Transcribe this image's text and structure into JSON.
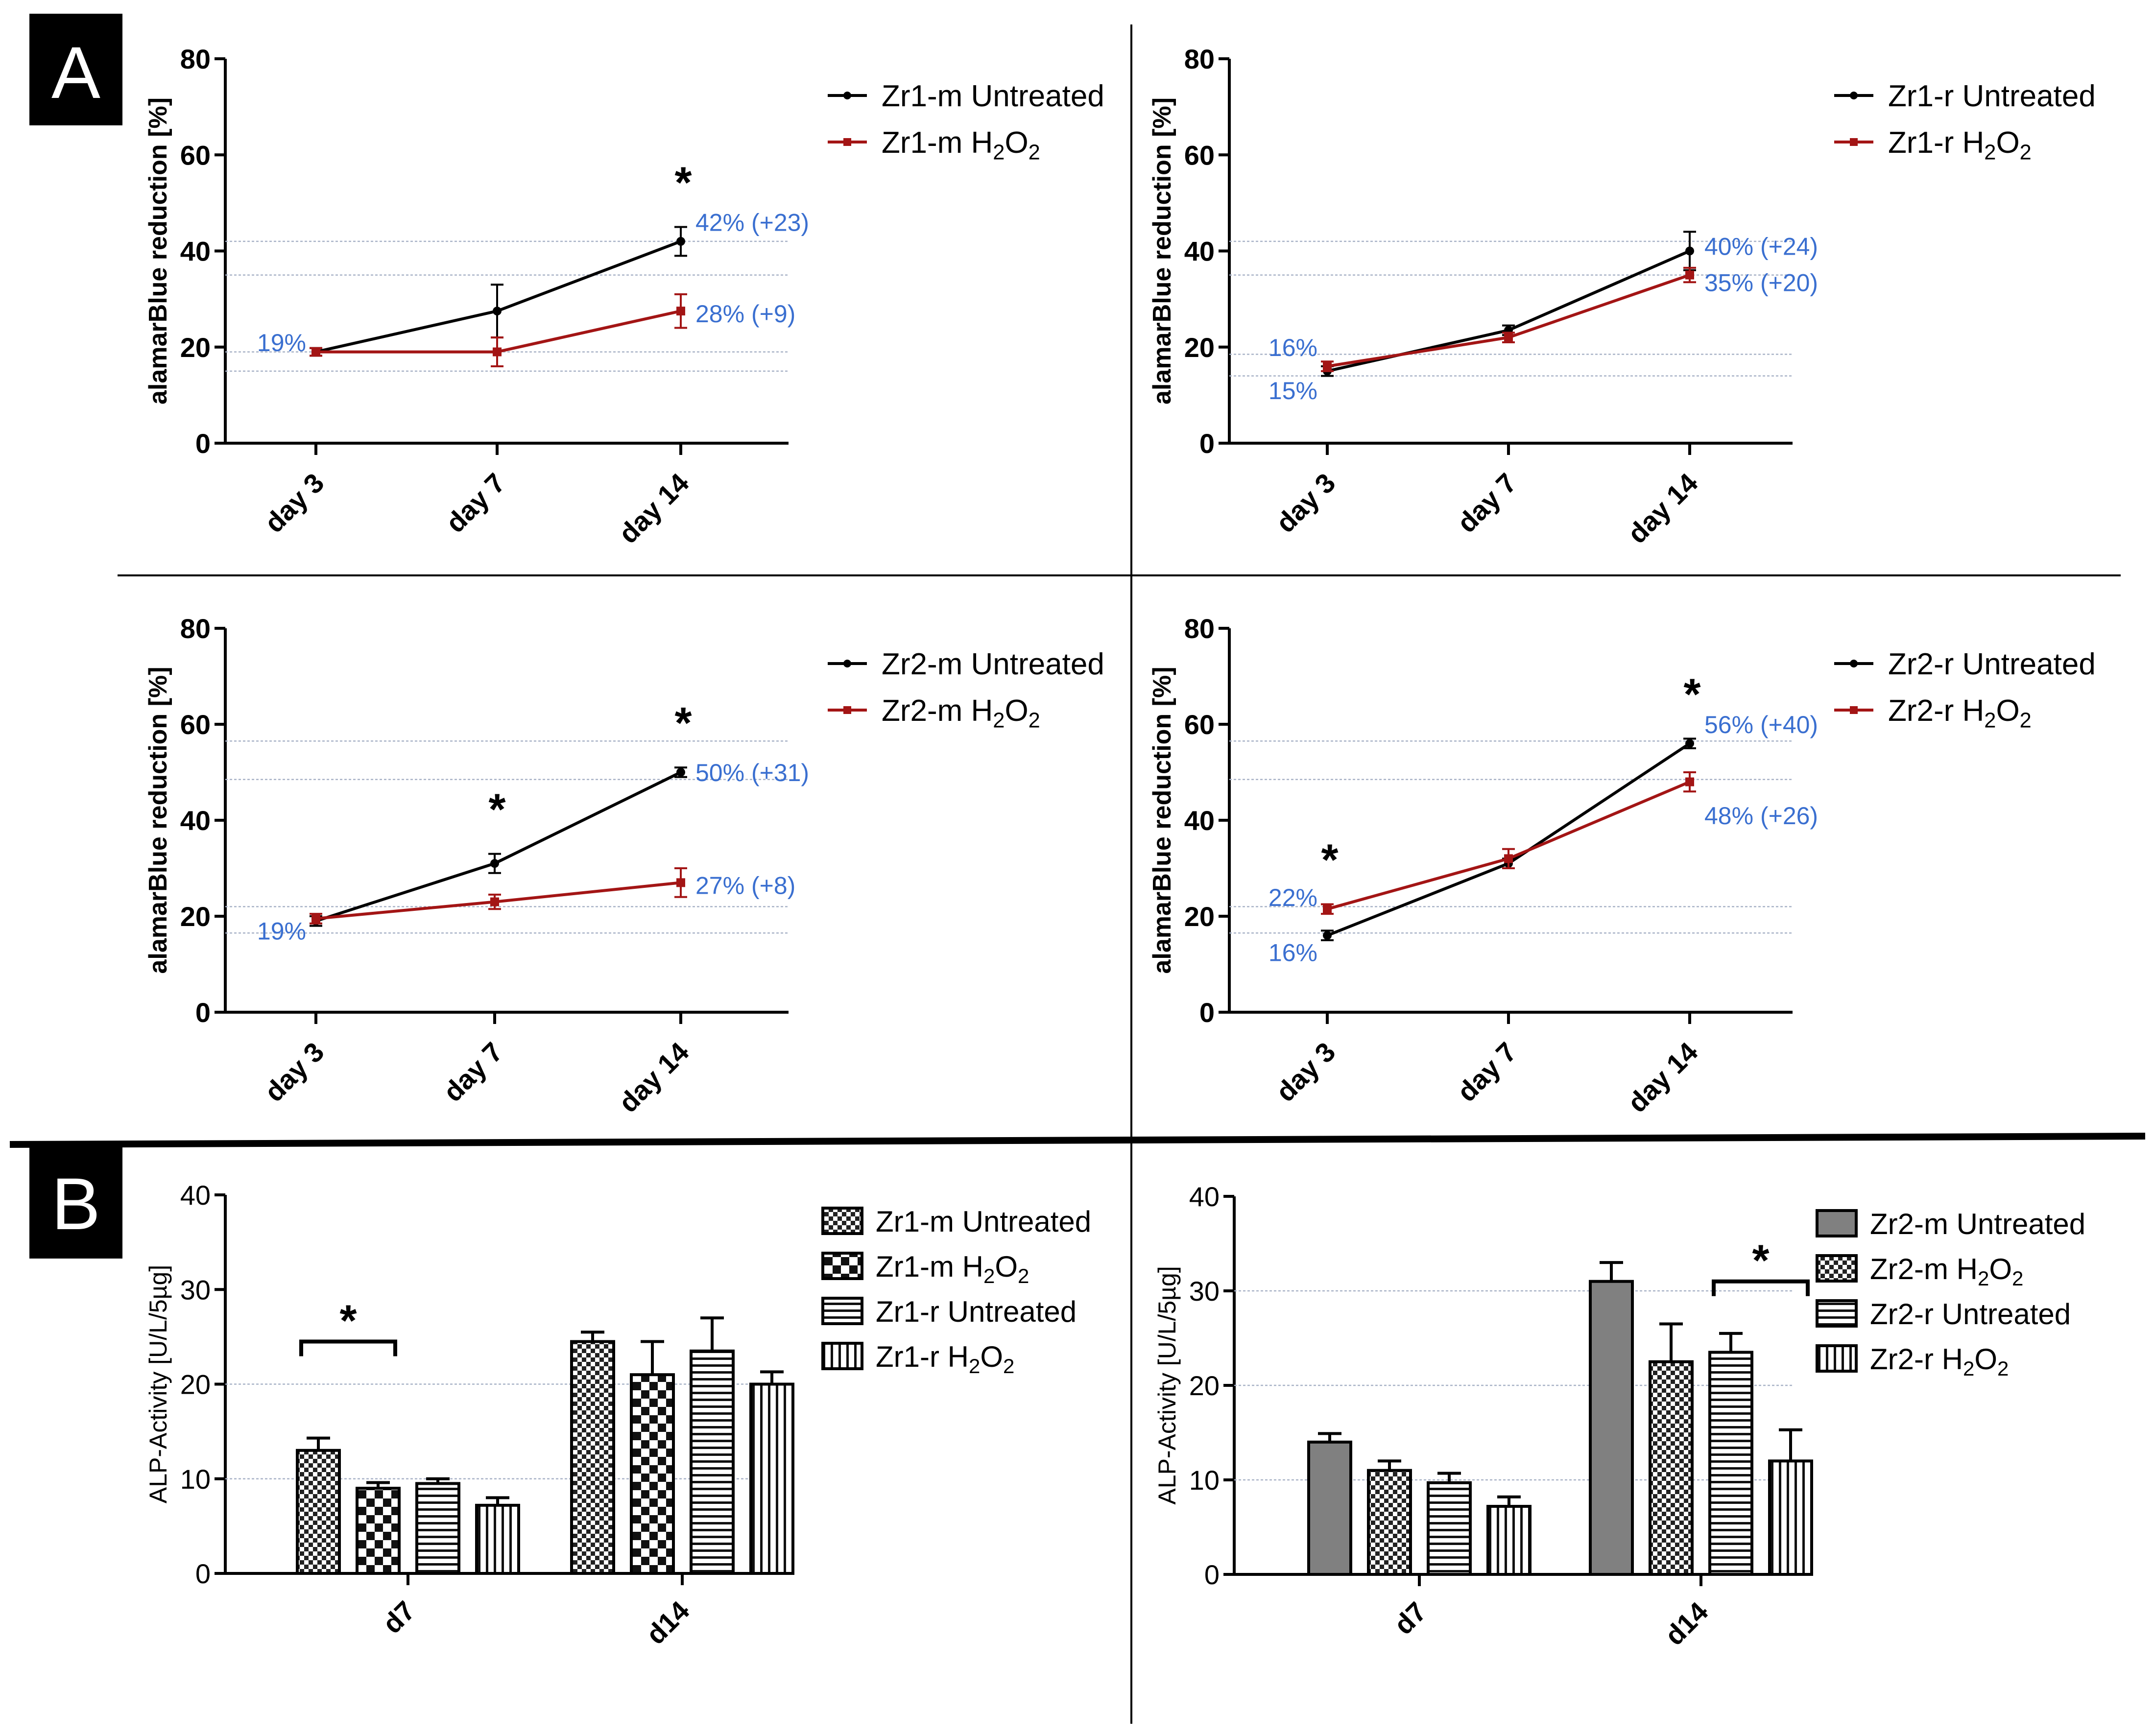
{
  "panel_labels": {
    "a": "A",
    "b": "B"
  },
  "star": "*",
  "h2o2_prefix": "H",
  "h2o2_sub1": "2",
  "h2o2_mid": "O",
  "h2o2_sub2": "2",
  "colors": {
    "untreated": "#000000",
    "h2o2": "#a31515",
    "annotation": "#3a6fd0",
    "grid": "#a9b3c7",
    "bar_fill_solid": "#808080"
  },
  "chart_data": [
    {
      "id": "a1",
      "type": "line",
      "categories": [
        "day 3",
        "day 7",
        "day 14"
      ],
      "ylabel": "alamarBlue reduction [%]",
      "ylim": [
        0,
        80
      ],
      "yticks": [
        "0",
        "20",
        "40",
        "60",
        "80"
      ],
      "series": [
        {
          "name": "Zr1-m Untreated",
          "values": [
            19,
            27.5,
            42
          ],
          "errors": [
            0.8,
            5.5,
            3
          ]
        },
        {
          "name": "Zr1-m",
          "name_suffix": "H2O2",
          "values": [
            19,
            19,
            27.5
          ],
          "errors": [
            0.8,
            3,
            3.5
          ]
        }
      ],
      "gridlines": [
        42,
        35,
        19,
        15
      ],
      "annotations": [
        {
          "text": "19%",
          "x": "day 3",
          "y": 21
        },
        {
          "text": "42% (+23)",
          "x": "day 14",
          "y": 46
        },
        {
          "text": "28% (+9)",
          "x": "day 14",
          "y": 27
        }
      ],
      "stars": [
        "day 14"
      ]
    },
    {
      "id": "a2",
      "type": "line",
      "categories": [
        "day 3",
        "day 7",
        "day 14"
      ],
      "ylabel": "alamarBlue reduction [%]",
      "ylim": [
        0,
        80
      ],
      "yticks": [
        "0",
        "20",
        "40",
        "60",
        "80"
      ],
      "series": [
        {
          "name": "Zr1-r Untreated",
          "values": [
            15,
            23.5,
            40
          ],
          "errors": [
            1,
            1,
            4
          ]
        },
        {
          "name": "Zr1-r",
          "name_suffix": "H2O2",
          "values": [
            16,
            22,
            35
          ],
          "errors": [
            1,
            1,
            1.5
          ]
        }
      ],
      "gridlines": [
        42,
        35,
        18.5,
        14
      ],
      "annotations": [
        {
          "text": "16%",
          "x": "day 3",
          "y": 20
        },
        {
          "text": "15%",
          "x": "day 3",
          "y": 11
        },
        {
          "text": "40% (+24)",
          "x": "day 14",
          "y": 41
        },
        {
          "text": "35% (+20)",
          "x": "day 14",
          "y": 33.5
        }
      ],
      "stars": []
    },
    {
      "id": "a3",
      "type": "line",
      "categories": [
        "day 3",
        "day 7",
        "day 14"
      ],
      "ylabel": "alamarBlue reduction [%]",
      "ylim": [
        0,
        80
      ],
      "yticks": [
        "0",
        "20",
        "40",
        "60",
        "80"
      ],
      "series": [
        {
          "name": "Zr2-m Untreated",
          "values": [
            19,
            31,
            50
          ],
          "errors": [
            1,
            2,
            1
          ]
        },
        {
          "name": "Zr2-m",
          "name_suffix": "H2O2",
          "values": [
            19.5,
            23,
            27
          ],
          "errors": [
            1,
            1.5,
            3
          ]
        }
      ],
      "gridlines": [
        56.5,
        48.5,
        22,
        16.5
      ],
      "annotations": [
        {
          "text": "19%",
          "x": "day 3",
          "y": 17
        },
        {
          "text": "50% (+31)",
          "x": "day 14",
          "y": 50
        },
        {
          "text": "27% (+8)",
          "x": "day 14",
          "y": 26.5
        }
      ],
      "stars": [
        "day 7",
        "day 14"
      ]
    },
    {
      "id": "a4",
      "type": "line",
      "categories": [
        "day 3",
        "day 7",
        "day 14"
      ],
      "ylabel": "alamarBlue reduction [%]",
      "ylim": [
        0,
        80
      ],
      "yticks": [
        "0",
        "20",
        "40",
        "60",
        "80"
      ],
      "series": [
        {
          "name": "Zr2-r Untreated",
          "values": [
            16,
            31,
            56
          ],
          "errors": [
            1,
            1,
            1
          ]
        },
        {
          "name": "Zr2-r",
          "name_suffix": "H2O2",
          "values": [
            21.5,
            32,
            48
          ],
          "errors": [
            1,
            2,
            2
          ]
        }
      ],
      "gridlines": [
        56.5,
        48.5,
        22,
        16.5
      ],
      "annotations": [
        {
          "text": "22%",
          "x": "day 3",
          "y": 24
        },
        {
          "text": "16%",
          "x": "day 3",
          "y": 12.5
        },
        {
          "text": "56% (+40)",
          "x": "day 14",
          "y": 60
        },
        {
          "text": "48% (+26)",
          "x": "day 14",
          "y": 41
        }
      ],
      "stars": [
        "day 3",
        "day 14"
      ]
    },
    {
      "id": "b1",
      "type": "bar",
      "categories": [
        "d7",
        "d14"
      ],
      "ylabel": "ALP-Activity [U/L/5µg]",
      "ylim": [
        0,
        40
      ],
      "yticks": [
        "0",
        "10",
        "20",
        "30",
        "40"
      ],
      "series": [
        {
          "name": "Zr1-m Untreated",
          "pattern": "check-small",
          "values": [
            13,
            24.5
          ],
          "errors": [
            1.3,
            1
          ]
        },
        {
          "name": "Zr1-m",
          "name_suffix": "H2O2",
          "pattern": "check-large",
          "values": [
            9,
            21
          ],
          "errors": [
            0.6,
            3.5
          ]
        },
        {
          "name": "Zr1-r Untreated",
          "pattern": "hstripe",
          "values": [
            9.5,
            23.5
          ],
          "errors": [
            0.5,
            3.5
          ]
        },
        {
          "name": "Zr1-r",
          "name_suffix": "H2O2",
          "pattern": "vstripe",
          "values": [
            7.2,
            20
          ],
          "errors": [
            0.8,
            1.3
          ]
        }
      ],
      "gridlines": [
        20,
        10
      ],
      "brackets": [
        {
          "category": "d7",
          "from": 0,
          "to": 1,
          "y": 24.5
        }
      ]
    },
    {
      "id": "b2",
      "type": "bar",
      "categories": [
        "d7",
        "d14"
      ],
      "ylabel": "ALP-Activity [U/L/5µg]",
      "ylim": [
        0,
        40
      ],
      "yticks": [
        "0",
        "10",
        "20",
        "30",
        "40"
      ],
      "series": [
        {
          "name": "Zr2-m Untreated",
          "pattern": "solid",
          "values": [
            14,
            31
          ],
          "errors": [
            0.9,
            2
          ]
        },
        {
          "name": "Zr2-m",
          "name_suffix": "H2O2",
          "pattern": "check-small",
          "values": [
            11,
            22.5
          ],
          "errors": [
            1,
            4
          ]
        },
        {
          "name": "Zr2-r Untreated",
          "pattern": "hstripe",
          "values": [
            9.7,
            23.5
          ],
          "errors": [
            1,
            2
          ]
        },
        {
          "name": "Zr2-r",
          "name_suffix": "H2O2",
          "pattern": "vstripe",
          "values": [
            7.2,
            12
          ],
          "errors": [
            1,
            3.3
          ]
        }
      ],
      "gridlines": [
        30,
        20,
        10
      ],
      "brackets": [
        {
          "category": "d14",
          "from": 2,
          "to": 3,
          "y": 31
        }
      ]
    }
  ]
}
